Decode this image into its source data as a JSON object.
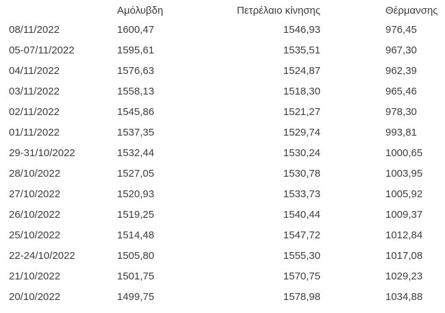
{
  "chart_data": {
    "type": "table",
    "columns": [
      {
        "key": "date",
        "label": ""
      },
      {
        "key": "unleaded",
        "label": "Αμόλυβδη"
      },
      {
        "key": "diesel",
        "label": "Πετρέλαιο κίνησης"
      },
      {
        "key": "heating",
        "label": "Θέρμανσης"
      }
    ],
    "rows": [
      [
        "08/11/2022",
        "1600,47",
        "1546,93",
        "976,45"
      ],
      [
        "05-07/11/2022",
        "1595,61",
        "1535,51",
        "967,30"
      ],
      [
        "04/11/2022",
        "1576,63",
        "1524,87",
        "962,39"
      ],
      [
        "03/11/2022",
        "1558,13",
        "1518,30",
        "965,46"
      ],
      [
        "02/11/2022",
        "1545,86",
        "1521,27",
        "978,30"
      ],
      [
        "01/11/2022",
        "1537,35",
        "1529,74",
        "993,81"
      ],
      [
        "29-31/10/2022",
        "1532,44",
        "1530,24",
        "1000,65"
      ],
      [
        "28/10/2022",
        "1527,05",
        "1530,78",
        "1003,95"
      ],
      [
        "27/10/2022",
        "1520,93",
        "1533,73",
        "1005,92"
      ],
      [
        "26/10/2022",
        "1519,25",
        "1540,44",
        "1009,37"
      ],
      [
        "25/10/2022",
        "1514,48",
        "1547,72",
        "1012,84"
      ],
      [
        "22-24/10/2022",
        "1505,80",
        "1555,30",
        "1017,08"
      ],
      [
        "21/10/2022",
        "1501,75",
        "1570,75",
        "1029,23"
      ],
      [
        "20/10/2022",
        "1499,75",
        "1578,98",
        "1034,88"
      ]
    ],
    "number_format": "comma-decimal",
    "legend_position": "none",
    "grid": false
  },
  "colors": {
    "text": "#3b3b3b",
    "background": "#ffffff"
  }
}
